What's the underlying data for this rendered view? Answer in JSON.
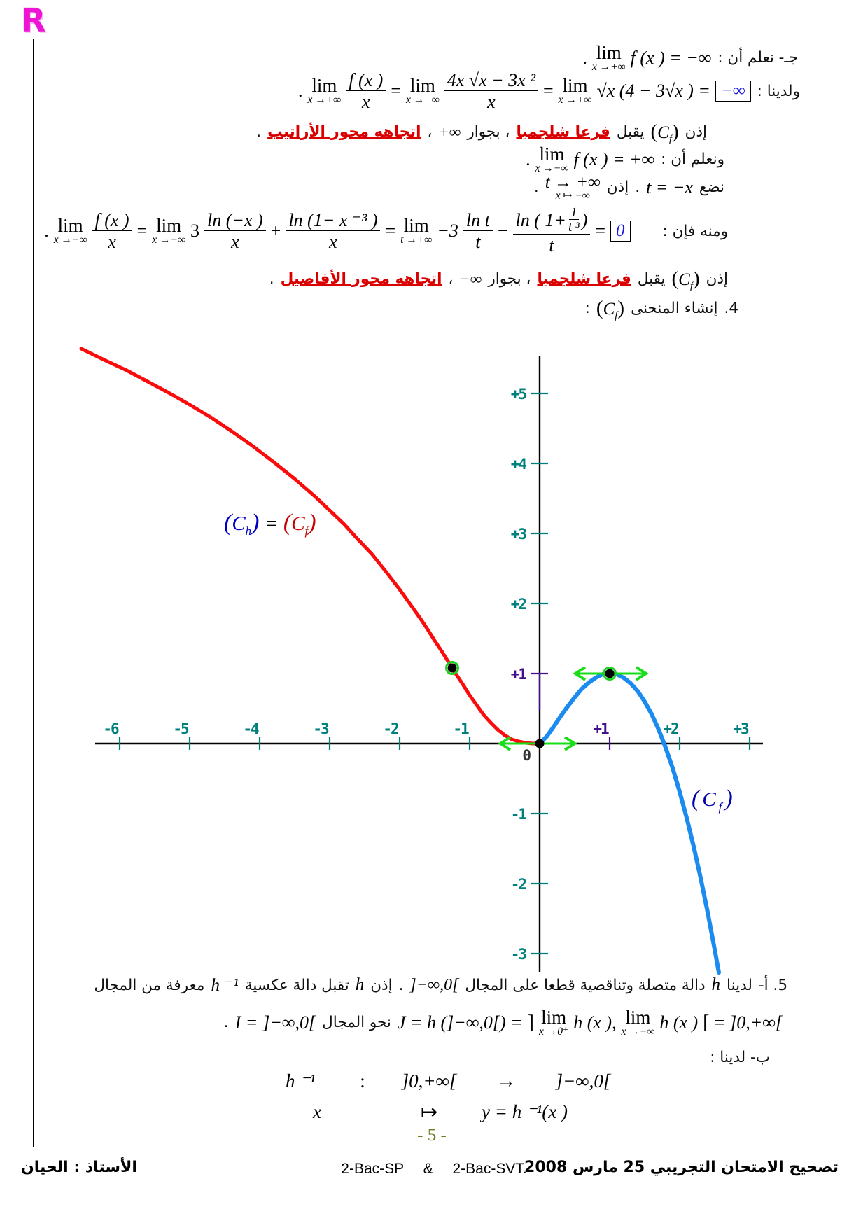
{
  "logo": "R",
  "sym": {
    "lim": "lim",
    "dot": ".",
    "eq": "=",
    "plus": "+",
    "minus": "−",
    "cf": {
      "open": "(",
      "c": "C",
      "sub": "f",
      "close": ")"
    },
    "ch": {
      "open": "(",
      "c": "C",
      "sub": "h",
      "close": ")"
    }
  },
  "lines": {
    "c": {
      "label": "جـ- نعلم أن :",
      "sub": "x →+∞",
      "expr": "f (x ) = −∞"
    },
    "d": {
      "label": "ولدينا :",
      "sub": "x →+∞",
      "f1n": "f (x )",
      "f1d": "x",
      "f2n": "4x √x − 3x ²",
      "f2d": "x",
      "tail": "√x (4 − 3√x ) =",
      "boxed": "−∞"
    },
    "e": {
      "pre": "إذن",
      "mid": "يقبل",
      "red1": "فرعا شلجميا",
      "t2": "، بجوار",
      "inf": "+∞",
      "comma": "،",
      "red2": "اتجاهه محور الأراتيب",
      "end": "."
    },
    "f": {
      "label": "ونعلم أن :",
      "sub": "x →−∞",
      "expr": "f (x ) = +∞"
    },
    "g": {
      "label": "نضع",
      "expr1": "t = −x",
      "mid": "إذن",
      "arrow": "t → +∞",
      "arrowsub": "x ↦ −∞"
    },
    "h": {
      "label": "ومنه فإن :",
      "sub1": "x →−∞",
      "f1n": "f (x )",
      "f1d": "x",
      "coef": "3",
      "f2n": "ln (−x )",
      "f2d": "x",
      "f3n": "ln (1− x ⁻³ )",
      "f3d": "x",
      "sub2": "t →+∞",
      "coef2": "−3",
      "f4n": "ln t",
      "f4d": "t",
      "f5a": "ln ( 1+",
      "f5n": "1",
      "f5d": "t ³",
      "f5b": ")",
      "f5den": "t",
      "boxed": "0"
    },
    "i": {
      "pre": "إذن",
      "mid": "يقبل",
      "red1": "فرعا شلجميا",
      "t2": "، بجوار",
      "inf": "−∞",
      "comma": "،",
      "red2": "اتجاهه محور الأفاصيل",
      "end": "."
    },
    "j": {
      "num": "4.",
      "text": "إنشاء المنحنى",
      "colon": ":"
    }
  },
  "q5": {
    "a1": {
      "n": "5. أ-",
      "t1": "لدينا",
      "h": "h",
      "t2": "دالة متصلة وتناقصية قطعا على المجال",
      "int1": "]−∞,0[",
      "dot": ".",
      "t3": "إذن",
      "h2": "h",
      "t4": "تقبل دالة عكسية",
      "hinv": "h ⁻¹",
      "t5": "معرفة من المجال"
    },
    "a2": {
      "j1": "J = h (]−∞,0[) =",
      "br1": "]",
      "lsub1": "x →0⁺",
      "hx1": "h (x ),",
      "lsub2": "x →−∞",
      "hx2": "h (x )",
      "br2": "[",
      "eq": "=",
      "int2": "]0,+∞[",
      "t1": "نحو المجال",
      "i1": "I =",
      "int1": "]−∞,0[",
      "dot": "."
    },
    "b": {
      "label": "ب- لدينا :"
    },
    "map": {
      "h": "h ⁻¹",
      "colon": ":",
      "dom": "]0,+∞[",
      "arrow": "→",
      "cod": "]−∞,0[",
      "x": "x",
      "mapsto": "↦",
      "img": "y = h ⁻¹(x )"
    }
  },
  "page_number": "- 5 -",
  "footer": {
    "right": "تصحيح الامتحان التجريبي 25 مارس 2008",
    "center_a": "2-Bac-SP",
    "amp": "&",
    "center_b": "2-Bac-SVT.",
    "left": "الأستاذ : الحيان"
  },
  "chart_data": {
    "type": "line",
    "title": "",
    "xlabel": "",
    "ylabel": "",
    "axes": {
      "xlim": [
        -6.6,
        3.3
      ],
      "ylim": [
        -3.4,
        5.7
      ],
      "x_ticks": [
        -6,
        -5,
        -4,
        -3,
        -2,
        -1,
        1,
        2,
        3
      ],
      "y_ticks": [
        -3,
        -2,
        -1,
        1,
        2,
        3,
        4,
        5
      ],
      "origin_label": "0",
      "tick_color": "#00807d",
      "highlight_color": "#440f8c",
      "highlight_value": 1,
      "grid": false
    },
    "series": [
      {
        "name": "red branch x<0 : f(x)=3ln(−x)+ln(1−x⁻³)",
        "color": "#fb0b0b",
        "width": 5,
        "points": [
          [
            -6.55,
            5.64
          ],
          [
            -6.2,
            5.47
          ],
          [
            -5.9,
            5.33
          ],
          [
            -5.6,
            5.17
          ],
          [
            -5.3,
            5.01
          ],
          [
            -5,
            4.84
          ],
          [
            -4.7,
            4.66
          ],
          [
            -4.4,
            4.46
          ],
          [
            -4.1,
            4.25
          ],
          [
            -3.8,
            4.02
          ],
          [
            -3.5,
            3.78
          ],
          [
            -3.2,
            3.52
          ],
          [
            -3,
            3.33
          ],
          [
            -2.8,
            3.14
          ],
          [
            -2.6,
            2.92
          ],
          [
            -2.4,
            2.71
          ],
          [
            -2.2,
            2.46
          ],
          [
            -2,
            2.2
          ],
          [
            -1.9,
            2.06
          ],
          [
            -1.8,
            1.92
          ],
          [
            -1.7,
            1.78
          ],
          [
            -1.6,
            1.63
          ],
          [
            -1.5,
            1.47
          ],
          [
            -1.4,
            1.32
          ],
          [
            -1.3,
            1.16
          ],
          [
            -1.25,
            1.08
          ],
          [
            -1.2,
            1.0
          ],
          [
            -1.1,
            0.85
          ],
          [
            -1,
            0.69
          ],
          [
            -0.9,
            0.55
          ],
          [
            -0.8,
            0.41
          ],
          [
            -0.7,
            0.3
          ],
          [
            -0.6,
            0.2
          ],
          [
            -0.5,
            0.12
          ],
          [
            -0.4,
            0.06
          ],
          [
            -0.3,
            0.03
          ],
          [
            -0.2,
            0.01
          ],
          [
            -0.1,
            0.0
          ],
          [
            -0.03,
            0.0
          ]
        ]
      },
      {
        "name": "blue branch x>0 : f(x)=4x√x−3x²",
        "color": "#1b8bf0",
        "width": 6,
        "points": [
          [
            0,
            0
          ],
          [
            0.1,
            0.1
          ],
          [
            0.2,
            0.24
          ],
          [
            0.3,
            0.39
          ],
          [
            0.4,
            0.53
          ],
          [
            0.5,
            0.66
          ],
          [
            0.6,
            0.78
          ],
          [
            0.7,
            0.87
          ],
          [
            0.8,
            0.94
          ],
          [
            0.9,
            0.99
          ],
          [
            1,
            1.0
          ],
          [
            1.1,
            0.99
          ],
          [
            1.2,
            0.94
          ],
          [
            1.3,
            0.86
          ],
          [
            1.4,
            0.75
          ],
          [
            1.5,
            0.6
          ],
          [
            1.6,
            0.42
          ],
          [
            1.7,
            0.2
          ],
          [
            1.8,
            -0.06
          ],
          [
            1.9,
            -0.35
          ],
          [
            2,
            -0.69
          ],
          [
            2.1,
            -1.06
          ],
          [
            2.2,
            -1.47
          ],
          [
            2.3,
            -1.92
          ],
          [
            2.4,
            -2.41
          ],
          [
            2.5,
            -2.94
          ],
          [
            2.56,
            -3.27
          ]
        ]
      }
    ],
    "markers": {
      "color": "#000000",
      "ring_color": "#1fd11f",
      "points": [
        [
          -1.25,
          1.08,
          1
        ],
        [
          0,
          0,
          0
        ],
        [
          1,
          1,
          1
        ]
      ]
    },
    "tangents": {
      "color": "#19dd19",
      "segments": [
        {
          "y": 1,
          "x1": 0.5,
          "x2": 1.53
        },
        {
          "y": 0,
          "x1": -0.57,
          "x2": 0.51
        }
      ]
    }
  }
}
